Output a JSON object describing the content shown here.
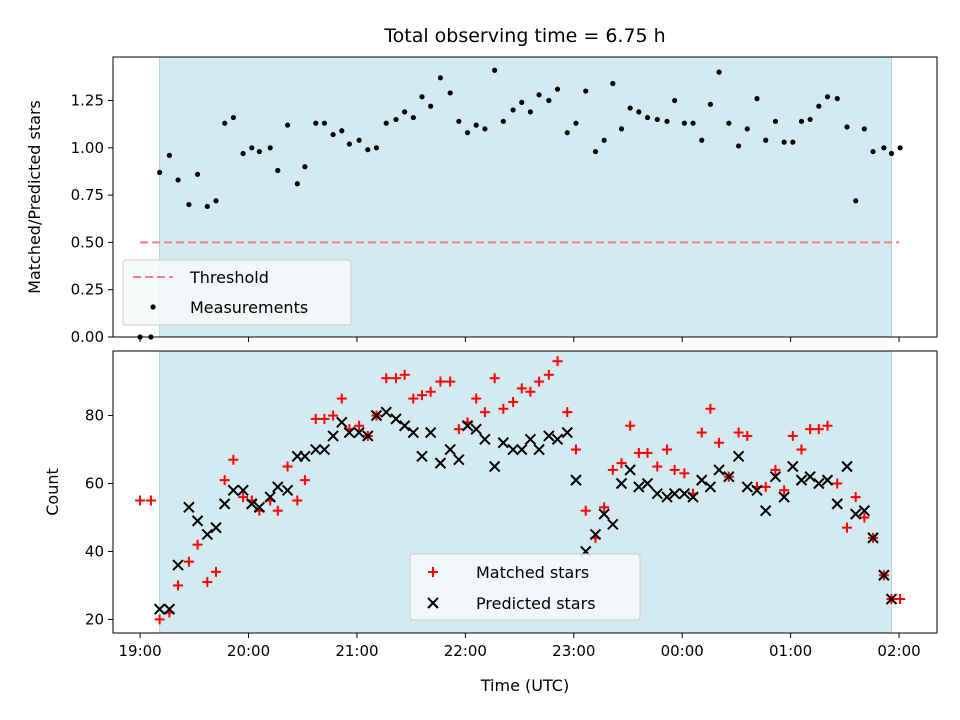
{
  "chart_data": [
    {
      "type": "scatter",
      "title": "Total observing time = 6.75 h",
      "ylabel": "Matched/Predicted stars",
      "xlabel": "",
      "xlim": [
        18.75,
        26.35
      ],
      "ylim": [
        0,
        1.48
      ],
      "yticks": [
        0.0,
        0.25,
        0.5,
        0.75,
        1.0,
        1.25
      ],
      "ytick_labels": [
        "0.00",
        "0.25",
        "0.50",
        "0.75",
        "1.00",
        "1.25"
      ],
      "xticks": [
        19,
        20,
        21,
        22,
        23,
        24,
        25,
        26
      ],
      "observing_window": [
        19.18,
        25.93
      ],
      "shade_color": "#d3eaf0",
      "threshold": {
        "name": "Threshold",
        "value": 0.5,
        "x_range": [
          19.0,
          26.0
        ],
        "color": "#f08080"
      },
      "legend": {
        "placement": "lower-left",
        "entries": [
          "Threshold",
          "Measurements"
        ]
      },
      "series": [
        {
          "name": "Measurements",
          "color": "#000000",
          "x": [
            19.0,
            19.1,
            19.18,
            19.27,
            19.35,
            19.45,
            19.53,
            19.62,
            19.7,
            19.78,
            19.86,
            19.95,
            20.03,
            20.1,
            20.2,
            20.27,
            20.36,
            20.45,
            20.52,
            20.62,
            20.7,
            20.78,
            20.86,
            20.93,
            21.02,
            21.1,
            21.18,
            21.27,
            21.36,
            21.44,
            21.52,
            21.6,
            21.68,
            21.77,
            21.86,
            21.94,
            22.02,
            22.1,
            22.18,
            22.27,
            22.35,
            22.44,
            22.52,
            22.6,
            22.68,
            22.77,
            22.85,
            22.94,
            23.02,
            23.11,
            23.2,
            23.28,
            23.36,
            23.44,
            23.52,
            23.6,
            23.68,
            23.77,
            23.86,
            23.93,
            24.02,
            24.1,
            24.18,
            24.26,
            24.34,
            24.43,
            24.52,
            24.6,
            24.69,
            24.77,
            24.86,
            24.94,
            25.02,
            25.1,
            25.18,
            25.26,
            25.34,
            25.43,
            25.52,
            25.6,
            25.68,
            25.76,
            25.86,
            25.93,
            26.01
          ],
          "y": [
            0.0,
            0.0,
            0.87,
            0.96,
            0.83,
            0.7,
            0.86,
            0.69,
            0.72,
            1.13,
            1.16,
            0.97,
            1.0,
            0.98,
            1.0,
            0.88,
            1.12,
            0.81,
            0.9,
            1.13,
            1.13,
            1.07,
            1.09,
            1.02,
            1.04,
            0.99,
            1.0,
            1.13,
            1.15,
            1.19,
            1.16,
            1.27,
            1.22,
            1.37,
            1.29,
            1.14,
            1.08,
            1.12,
            1.1,
            1.41,
            1.14,
            1.2,
            1.24,
            1.19,
            1.28,
            1.25,
            1.31,
            1.08,
            1.13,
            1.3,
            0.98,
            1.04,
            1.34,
            1.1,
            1.21,
            1.19,
            1.16,
            1.15,
            1.14,
            1.25,
            1.13,
            1.13,
            1.04,
            1.23,
            1.4,
            1.13,
            1.01,
            1.1,
            1.26,
            1.04,
            1.14,
            1.03,
            1.03,
            1.14,
            1.15,
            1.22,
            1.27,
            1.26,
            1.11,
            0.72,
            1.1,
            0.98,
            1.0,
            0.97,
            1.0
          ]
        }
      ]
    },
    {
      "type": "scatter",
      "title": "",
      "ylabel": "Count",
      "xlabel": "Time (UTC)",
      "xlim": [
        18.75,
        26.35
      ],
      "ylim": [
        16,
        99
      ],
      "yticks": [
        20,
        40,
        60,
        80
      ],
      "ytick_labels": [
        "20",
        "40",
        "60",
        "80"
      ],
      "xticks": [
        19,
        20,
        21,
        22,
        23,
        24,
        25,
        26
      ],
      "xtick_labels": [
        "19:00",
        "20:00",
        "21:00",
        "22:00",
        "23:00",
        "00:00",
        "01:00",
        "02:00"
      ],
      "observing_window": [
        19.18,
        25.93
      ],
      "shade_color": "#d3eaf0",
      "legend": {
        "placement": "lower-center",
        "entries": [
          "Matched stars",
          "Predicted stars"
        ]
      },
      "series": [
        {
          "name": "Matched stars",
          "marker": "plus",
          "color": "#ff0000",
          "x": [
            19.0,
            19.1,
            19.18,
            19.27,
            19.35,
            19.45,
            19.53,
            19.62,
            19.7,
            19.78,
            19.86,
            19.95,
            20.03,
            20.1,
            20.2,
            20.27,
            20.36,
            20.45,
            20.52,
            20.62,
            20.7,
            20.78,
            20.86,
            20.93,
            21.02,
            21.1,
            21.18,
            21.27,
            21.36,
            21.44,
            21.52,
            21.6,
            21.68,
            21.77,
            21.86,
            21.94,
            22.02,
            22.1,
            22.18,
            22.27,
            22.35,
            22.44,
            22.52,
            22.6,
            22.68,
            22.77,
            22.85,
            22.94,
            23.02,
            23.11,
            23.2,
            23.28,
            23.36,
            23.44,
            23.52,
            23.6,
            23.68,
            23.77,
            23.86,
            23.93,
            24.02,
            24.1,
            24.18,
            24.26,
            24.34,
            24.43,
            24.52,
            24.6,
            24.69,
            24.77,
            24.86,
            24.94,
            25.02,
            25.1,
            25.18,
            25.26,
            25.34,
            25.43,
            25.52,
            25.6,
            25.68,
            25.76,
            25.86,
            25.93,
            26.01
          ],
          "y": [
            55,
            55,
            20,
            22,
            30,
            37,
            42,
            31,
            34,
            61,
            67,
            56,
            55,
            52,
            55,
            52,
            65,
            55,
            61,
            79,
            79,
            80,
            85,
            76,
            77,
            74,
            80,
            91,
            91,
            92,
            85,
            86,
            87,
            90,
            90,
            76,
            78,
            85,
            81,
            91,
            82,
            84,
            88,
            87,
            90,
            92,
            96,
            81,
            70,
            52,
            44,
            53,
            64,
            66,
            77,
            69,
            69,
            65,
            70,
            64,
            63,
            57,
            75,
            82,
            72,
            62,
            75,
            74,
            59,
            59,
            64,
            58,
            74,
            70,
            76,
            76,
            77,
            60,
            47,
            56,
            50,
            44,
            33,
            26,
            26
          ]
        },
        {
          "name": "Predicted stars",
          "marker": "x",
          "color": "#000000",
          "x": [
            19.18,
            19.27,
            19.35,
            19.45,
            19.53,
            19.62,
            19.7,
            19.78,
            19.86,
            19.95,
            20.03,
            20.1,
            20.2,
            20.27,
            20.36,
            20.45,
            20.52,
            20.62,
            20.7,
            20.78,
            20.86,
            20.93,
            21.02,
            21.1,
            21.18,
            21.27,
            21.36,
            21.44,
            21.52,
            21.6,
            21.68,
            21.77,
            21.86,
            21.94,
            22.02,
            22.1,
            22.18,
            22.27,
            22.35,
            22.44,
            22.52,
            22.6,
            22.68,
            22.77,
            22.85,
            22.94,
            23.02,
            23.11,
            23.2,
            23.28,
            23.36,
            23.44,
            23.52,
            23.6,
            23.68,
            23.77,
            23.86,
            23.93,
            24.02,
            24.1,
            24.18,
            24.26,
            24.34,
            24.43,
            24.52,
            24.6,
            24.69,
            24.77,
            24.86,
            24.94,
            25.02,
            25.1,
            25.18,
            25.26,
            25.34,
            25.43,
            25.52,
            25.6,
            25.68,
            25.76,
            25.86,
            25.93
          ],
          "y": [
            23,
            23,
            36,
            53,
            49,
            45,
            47,
            54,
            58,
            58,
            54,
            53,
            56,
            59,
            58,
            68,
            68,
            70,
            70,
            74,
            78,
            75,
            75,
            74,
            80,
            81,
            79,
            77,
            75,
            68,
            75,
            66,
            70,
            67,
            77,
            76,
            73,
            65,
            72,
            70,
            70,
            73,
            70,
            74,
            73,
            75,
            61,
            40,
            45,
            51,
            48,
            60,
            64,
            59,
            60,
            57,
            56,
            57,
            57,
            56,
            61,
            59,
            64,
            62,
            68,
            59,
            58,
            52,
            62,
            56,
            65,
            61,
            62,
            60,
            61,
            54,
            65,
            51,
            52,
            44,
            33,
            26
          ]
        }
      ]
    }
  ]
}
